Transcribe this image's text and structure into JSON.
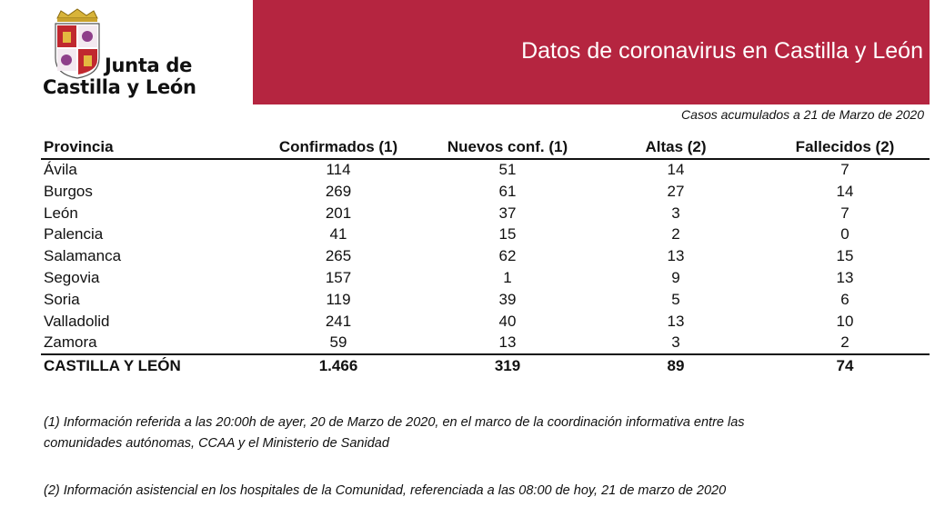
{
  "logo": {
    "line1": "Junta de",
    "line2": "Castilla y León"
  },
  "header": {
    "title": "Datos de coronavirus en Castilla y León",
    "subtitle": "Casos acumulados a 21 de Marzo de 2020"
  },
  "table": {
    "columns": [
      "Provincia",
      "Confirmados (1)",
      "Nuevos conf. (1)",
      "Altas (2)",
      "Fallecidos (2)"
    ],
    "rows": [
      [
        "Ávila",
        114,
        51,
        14,
        7
      ],
      [
        "Burgos",
        269,
        61,
        27,
        14
      ],
      [
        "León",
        201,
        37,
        3,
        7
      ],
      [
        "Palencia",
        41,
        15,
        2,
        0
      ],
      [
        "Salamanca",
        265,
        62,
        13,
        15
      ],
      [
        "Segovia",
        157,
        1,
        9,
        13
      ],
      [
        "Soria",
        119,
        39,
        5,
        6
      ],
      [
        "Valladolid",
        241,
        40,
        13,
        10
      ],
      [
        "Zamora",
        59,
        13,
        3,
        2
      ]
    ],
    "total": [
      "CASTILLA Y LEÓN",
      "1.466",
      319,
      89,
      74
    ]
  },
  "footnotes": [
    "(1) Información referida a las 20:00h de ayer, 20 de Marzo de 2020, en el marco de la coordinación informativa entre las",
    "comunidades autónomas, CCAA y el Ministerio de Sanidad",
    "(2) Información asistencial en los hospitales de la Comunidad, referenciada a las 08:00 de hoy, 21 de marzo de 2020"
  ]
}
